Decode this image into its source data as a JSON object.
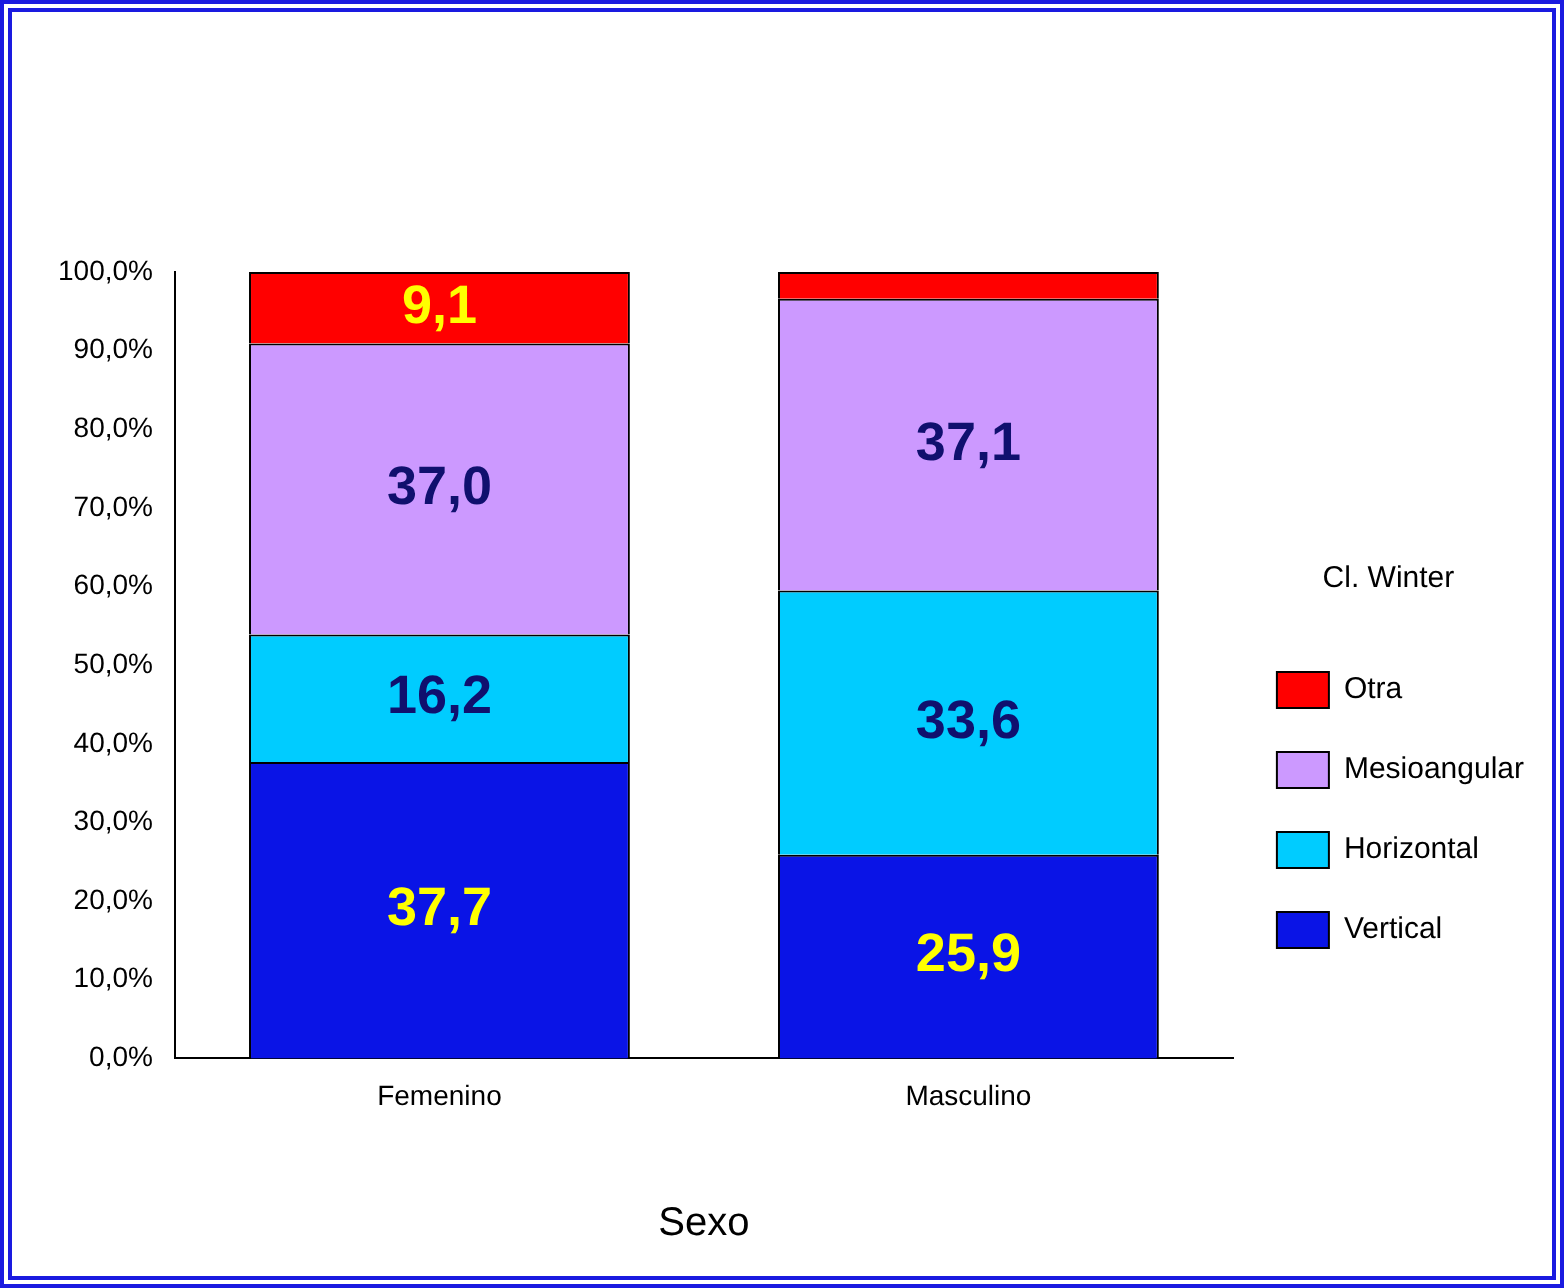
{
  "chart_data": {
    "type": "bar",
    "stacked": true,
    "xlabel": "Sexo",
    "legend_title": "Cl. Winter",
    "legend": "right",
    "grid": false,
    "categories": [
      "Femenino",
      "Masculino"
    ],
    "ylim": [
      0,
      100
    ],
    "yticks": [
      {
        "value": 0,
        "label": "0,0%"
      },
      {
        "value": 10,
        "label": "10,0%"
      },
      {
        "value": 20,
        "label": "20,0%"
      },
      {
        "value": 30,
        "label": "30,0%"
      },
      {
        "value": 40,
        "label": "40,0%"
      },
      {
        "value": 50,
        "label": "50,0%"
      },
      {
        "value": 60,
        "label": "60,0%"
      },
      {
        "value": 70,
        "label": "70,0%"
      },
      {
        "value": 80,
        "label": "80,0%"
      },
      {
        "value": 90,
        "label": "90,0%"
      },
      {
        "value": 100,
        "label": "100,0%"
      }
    ],
    "series": [
      {
        "name": "Vertical",
        "color": "#0a14e6",
        "values": [
          37.7,
          25.9
        ],
        "value_labels": [
          "37,7",
          "25,9"
        ]
      },
      {
        "name": "Horizontal",
        "color": "#00ccff",
        "values": [
          16.2,
          33.6
        ],
        "value_labels": [
          "16,2",
          "33,6"
        ]
      },
      {
        "name": "Mesioangular",
        "color": "#cc99ff",
        "values": [
          37.0,
          37.1
        ],
        "value_labels": [
          "37,0",
          "37,1"
        ]
      },
      {
        "name": "Otra",
        "color": "#ff0000",
        "values": [
          9.1,
          3.4
        ],
        "value_labels": [
          "9,1",
          null
        ]
      }
    ]
  }
}
